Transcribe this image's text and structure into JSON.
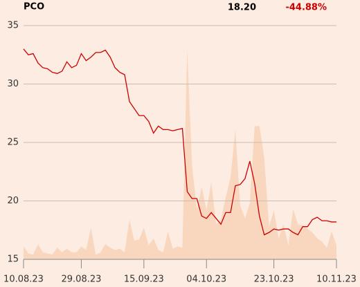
{
  "chart_data": {
    "type": "line",
    "title": "PCO",
    "annotations": [
      "18.20",
      "-44.88%"
    ],
    "categories": [
      "10.08.23",
      null,
      null,
      null,
      null,
      null,
      null,
      null,
      null,
      null,
      null,
      null,
      "29.08.23",
      null,
      null,
      null,
      null,
      null,
      null,
      null,
      null,
      null,
      null,
      null,
      null,
      "15.09.23",
      null,
      null,
      null,
      null,
      null,
      null,
      null,
      null,
      null,
      null,
      null,
      null,
      "04.10.23",
      null,
      null,
      null,
      null,
      null,
      null,
      null,
      null,
      null,
      null,
      null,
      null,
      null,
      "23.10.23",
      null,
      null,
      null,
      null,
      null,
      null,
      null,
      null,
      null,
      null,
      null,
      null,
      "10.11.23"
    ],
    "values": [
      33.0,
      32.5,
      32.6,
      31.8,
      31.4,
      31.3,
      31.0,
      30.9,
      31.1,
      31.9,
      31.4,
      31.6,
      32.6,
      32.0,
      32.3,
      32.7,
      32.7,
      32.9,
      32.3,
      31.4,
      31.0,
      30.8,
      28.5,
      27.9,
      27.3,
      27.3,
      26.8,
      25.8,
      26.4,
      26.1,
      26.1,
      26.0,
      26.1,
      26.2,
      20.8,
      20.2,
      20.2,
      18.7,
      18.5,
      19.0,
      18.5,
      18.0,
      19.0,
      19.0,
      21.3,
      21.4,
      21.9,
      23.4,
      21.5,
      18.7,
      17.1,
      17.3,
      17.6,
      17.5,
      17.6,
      17.6,
      17.3,
      17.1,
      17.8,
      17.8,
      18.4,
      18.6,
      18.3,
      18.3,
      18.2,
      18.2
    ],
    "volume": [
      16.1,
      15.5,
      15.4,
      16.3,
      15.6,
      15.5,
      15.4,
      16.0,
      15.6,
      15.9,
      15.6,
      15.6,
      16.1,
      15.8,
      17.7,
      15.4,
      15.6,
      16.3,
      16.0,
      15.8,
      15.9,
      15.6,
      18.4,
      16.6,
      16.7,
      17.7,
      16.2,
      16.8,
      15.8,
      15.6,
      17.4,
      15.9,
      16.1,
      16.0,
      33.0,
      23.0,
      19.3,
      21.2,
      19.2,
      21.6,
      18.0,
      18.4,
      20.3,
      22.0,
      26.1,
      19.6,
      18.5,
      19.8,
      26.4,
      26.4,
      23.7,
      17.8,
      19.2,
      16.8,
      18.0,
      16.2,
      19.3,
      18.0,
      17.9,
      17.6,
      17.3,
      16.8,
      16.5,
      16.0,
      17.4,
      16.2
    ],
    "color": "#cc0000",
    "volume_color": "#f9d6be",
    "annotation_color": "#cc0000",
    "ylim": [
      15,
      35
    ],
    "yticks": [
      15,
      20,
      25,
      30,
      35
    ],
    "grid": true
  }
}
